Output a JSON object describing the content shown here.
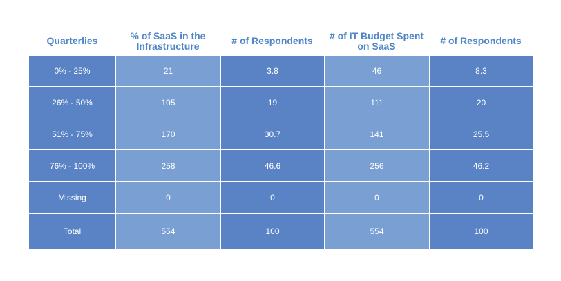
{
  "chart_data": {
    "type": "table",
    "columns": [
      "Quarterlies",
      "% of SaaS in the Infrastructure",
      "# of Respondents",
      "# of IT Budget Spent on SaaS",
      "# of Respondents"
    ],
    "rows": [
      [
        "0% - 25%",
        "21",
        "3.8",
        "46",
        "8.3"
      ],
      [
        "26% - 50%",
        "105",
        "19",
        "111",
        "20"
      ],
      [
        "51% - 75%",
        "170",
        "30.7",
        "141",
        "25.5"
      ],
      [
        "76% - 100%",
        "258",
        "46.6",
        "256",
        "46.2"
      ],
      [
        "Missing",
        "0",
        "0",
        "0",
        "0"
      ],
      [
        "Total",
        "554",
        "100",
        "554",
        "100"
      ]
    ]
  },
  "colors": {
    "header_text": "#4f86c6",
    "dark_cell": "#5a83c5",
    "light_cell": "#7a9fd3",
    "cell_text": "#ffffff"
  }
}
